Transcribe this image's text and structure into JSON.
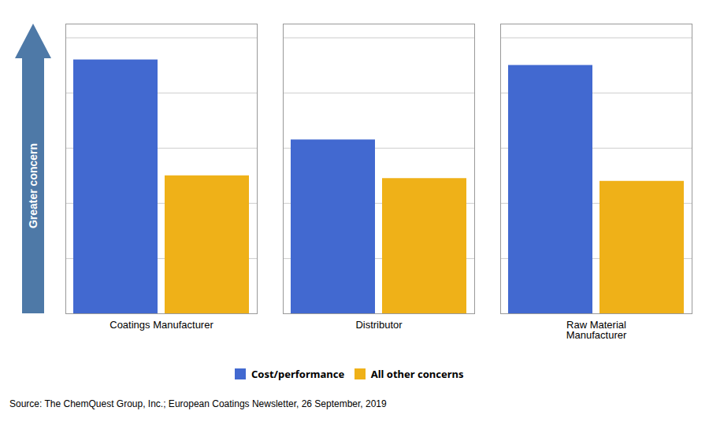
{
  "chart_data": {
    "type": "bar",
    "categories": [
      "Coatings Manufacturer",
      "Distributor",
      "Raw Material\nManufacturer"
    ],
    "series": [
      {
        "name": "Cost/performance",
        "values": [
          0.92,
          0.63,
          0.9
        ]
      },
      {
        "name": "All other concerns",
        "values": [
          0.5,
          0.49,
          0.48
        ]
      }
    ],
    "ylabel": "Greater concern",
    "ylim": [
      0,
      1.05
    ],
    "yticks": [
      0,
      0.2,
      0.4,
      0.6,
      0.8,
      1
    ],
    "grid": true,
    "tick_labels": "x",
    "legend": "bottom",
    "annotations": [
      "Source: The ChemQuest Group, Inc.; European Coatings Newsletter, 26 September, 2019"
    ]
  }
}
